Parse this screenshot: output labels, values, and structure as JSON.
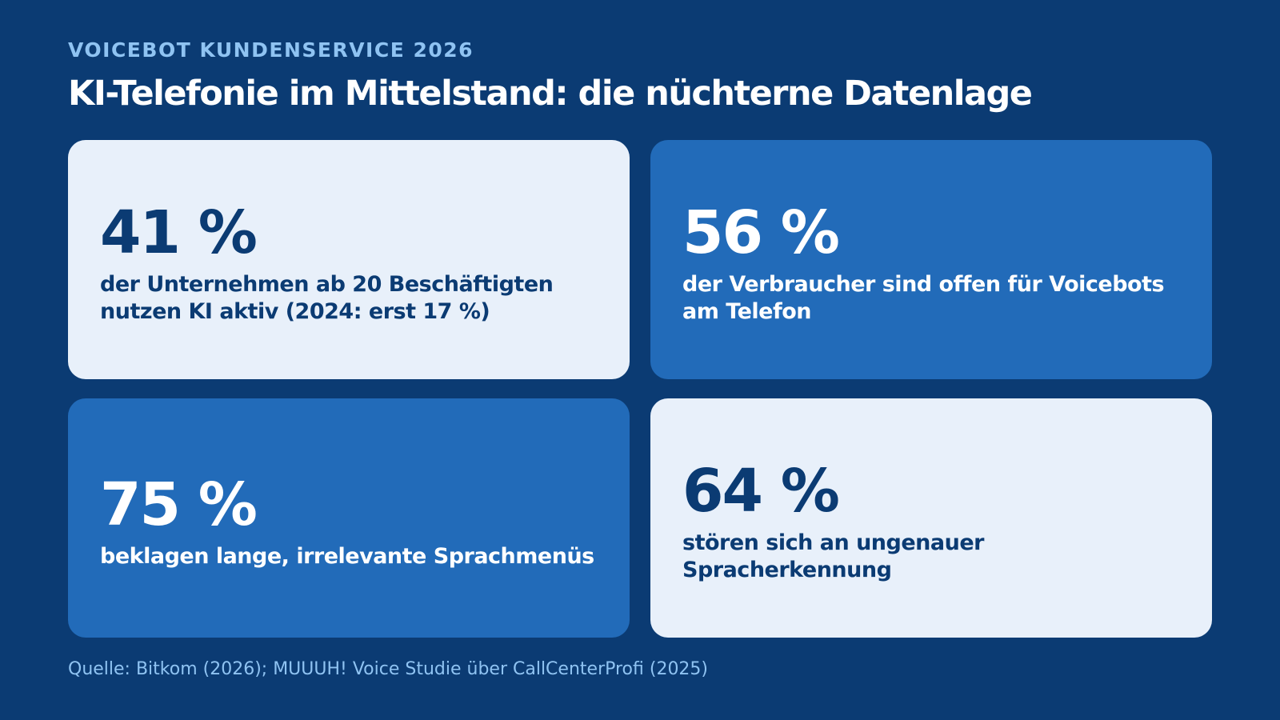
{
  "header": {
    "kicker": "VOICEBOT KUNDENSERVICE 2026",
    "title": "KI-Telefonie im Mittelstand: die nüchterne Datenlage"
  },
  "stats": [
    {
      "value": "41 %",
      "label_line1": "der Unternehmen ab 20 Beschäftigten",
      "label_line2": "nutzen KI aktiv (2024: erst 17 %)",
      "theme": "light"
    },
    {
      "value": "56 %",
      "label_line1": "der Verbraucher sind offen für Voicebots",
      "label_line2": "am Telefon",
      "theme": "dark"
    },
    {
      "value": "75 %",
      "label_line1": "beklagen lange, irrelevante Sprachmenüs",
      "label_line2": "",
      "theme": "dark"
    },
    {
      "value": "64 %",
      "label_line1": "stören sich an ungenauer",
      "label_line2": "Spracherkennung",
      "theme": "light"
    }
  ],
  "footer": {
    "source": "Quelle: Bitkom (2026); MUUUH! Voice Studie über CallCenterProfi (2025)"
  },
  "colors": {
    "background": "#0b3b73",
    "card_light": "#e8f0fa",
    "card_dark": "#226bb9",
    "accent_light_blue": "#8fc3f2",
    "text_white": "#ffffff",
    "text_navy": "#0b3b73"
  }
}
